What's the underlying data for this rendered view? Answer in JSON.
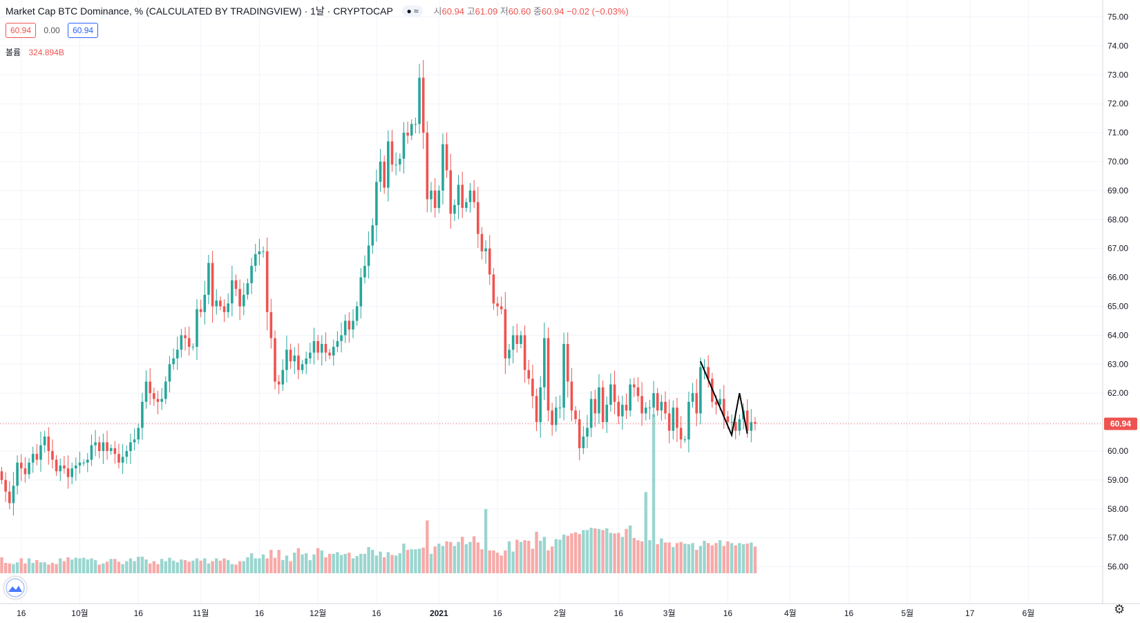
{
  "legend": {
    "symbol": "Market Cap BTC Dominance, % (CALCULATED BY TRADINGVIEW) · 1날 · CRYPTOCAP",
    "toggle": "● ≈",
    "o_label": "시",
    "o": "60.94",
    "h_label": "고",
    "h": "61.09",
    "l_label": "저",
    "l": "60.60",
    "c_label": "종",
    "c": "60.94",
    "change": "−0.02 (−0.03%)"
  },
  "value_chips": {
    "sell": "60.94",
    "spread": "0.00",
    "buy": "60.94"
  },
  "volume": {
    "label": "볼륨",
    "value": "324.894B"
  },
  "price_badge": "60.94",
  "colors": {
    "up": "#26a69a",
    "down": "#ef5350",
    "vol_up": "#9ad5cf",
    "vol_down": "#f7a9a8"
  },
  "icons": {
    "logo": "tradingview-logo-icon",
    "settings": "gear-icon"
  },
  "chart_data": {
    "type": "candlestick",
    "title": "Market Cap BTC Dominance, %",
    "ylim": [
      56.0,
      75.0
    ],
    "y_ticks": [
      "56.00",
      "57.00",
      "58.00",
      "59.00",
      "60.00",
      "61.00",
      "62.00",
      "63.00",
      "64.00",
      "65.00",
      "66.00",
      "67.00",
      "68.00",
      "69.00",
      "70.00",
      "71.00",
      "72.00",
      "73.00",
      "74.00",
      "75.00"
    ],
    "x_ticks": [
      {
        "label": "16",
        "i": 5
      },
      {
        "label": "10월",
        "i": 20
      },
      {
        "label": "16",
        "i": 35
      },
      {
        "label": "11월",
        "i": 51
      },
      {
        "label": "16",
        "i": 66
      },
      {
        "label": "12월",
        "i": 81
      },
      {
        "label": "16",
        "i": 96
      },
      {
        "label": "2021",
        "i": 112
      },
      {
        "label": "16",
        "i": 127
      },
      {
        "label": "2월",
        "i": 143
      },
      {
        "label": "16",
        "i": 158
      },
      {
        "label": "3월",
        "i": 171
      },
      {
        "label": "16",
        "i": 186
      },
      {
        "label": "4월",
        "i": 202
      },
      {
        "label": "16",
        "i": 217
      },
      {
        "label": "5월",
        "i": 232
      },
      {
        "label": "17",
        "i": 248
      },
      {
        "label": "6월",
        "i": 263
      }
    ],
    "last_price": 60.94,
    "drawn_line": [
      [
        179,
        63.1
      ],
      [
        187,
        60.55
      ],
      [
        189,
        62.0
      ],
      [
        191,
        60.6
      ]
    ],
    "closes": [
      59.0,
      58.6,
      58.2,
      58.8,
      59.6,
      59.4,
      59.2,
      59.6,
      59.9,
      59.7,
      60.2,
      60.5,
      60.0,
      59.7,
      59.3,
      59.5,
      59.4,
      59.1,
      59.4,
      59.5,
      59.6,
      59.6,
      59.7,
      60.2,
      60.3,
      60.0,
      60.3,
      60.0,
      60.1,
      59.9,
      59.6,
      59.8,
      60.0,
      60.3,
      60.4,
      60.8,
      61.7,
      62.4,
      62.0,
      61.8,
      61.7,
      61.8,
      62.4,
      63.0,
      63.2,
      63.5,
      64.0,
      63.9,
      63.6,
      63.6,
      64.9,
      64.8,
      65.4,
      66.5,
      65.0,
      65.2,
      65.0,
      64.8,
      65.1,
      65.9,
      65.6,
      65.0,
      65.4,
      65.8,
      66.4,
      66.8,
      66.9,
      66.9,
      64.8,
      63.9,
      62.4,
      62.3,
      62.8,
      63.5,
      63.1,
      63.3,
      62.8,
      63.0,
      63.2,
      63.4,
      63.8,
      63.4,
      63.7,
      63.4,
      63.3,
      63.6,
      63.8,
      64.0,
      64.5,
      64.2,
      64.5,
      65.0,
      66.0,
      66.4,
      67.1,
      67.8,
      69.3,
      70.0,
      69.1,
      70.7,
      69.9,
      69.9,
      70.1,
      71.0,
      70.9,
      71.3,
      71.3,
      72.9,
      71.0,
      68.7,
      69.0,
      68.4,
      69.0,
      70.6,
      69.7,
      68.2,
      68.5,
      69.2,
      68.4,
      68.6,
      69.0,
      68.6,
      67.5,
      66.9,
      67.0,
      66.1,
      65.1,
      65.0,
      64.9,
      63.2,
      63.5,
      64.0,
      63.7,
      64.0,
      62.8,
      62.5,
      61.9,
      61.0,
      62.2,
      63.9,
      61.4,
      60.9,
      61.5,
      61.5,
      63.7,
      62.4,
      61.4,
      61.1,
      60.1,
      60.5,
      60.8,
      61.8,
      61.3,
      62.2,
      61.0,
      61.6,
      62.3,
      61.7,
      61.2,
      61.6,
      61.4,
      62.3,
      62.2,
      61.9,
      61.3,
      61.5,
      61.5,
      62.0,
      61.4,
      61.7,
      61.3,
      60.7,
      61.5,
      60.8,
      60.4,
      60.4,
      61.7,
      62.0,
      61.3,
      62.9,
      62.9,
      62.5,
      61.7,
      61.6,
      61.8,
      61.2,
      61.0,
      61.0,
      60.7,
      61.1,
      61.4,
      60.7,
      61.0,
      60.94
    ],
    "volumes": [
      16.5,
      15.5,
      15.4,
      15.3,
      15.6,
      16.3,
      15.4,
      16.3,
      15.5,
      16.0,
      15.6,
      15.6,
      15.2,
      15.5,
      15.3,
      16.3,
      15.8,
      16.5,
      16.1,
      16.4,
      16.3,
      16.4,
      16.1,
      16.3,
      16.0,
      15.2,
      15.4,
      15.7,
      16.2,
      16.2,
      15.7,
      15.3,
      15.8,
      16.3,
      15.8,
      16.6,
      16.6,
      16.1,
      15.4,
      15.8,
      15.3,
      16.2,
      15.8,
      16.4,
      15.9,
      15.6,
      16.1,
      16.0,
      15.7,
      15.9,
      16.3,
      15.9,
      16.3,
      15.4,
      15.8,
      16.3,
      15.9,
      16.3,
      16.0,
      15.3,
      15.2,
      15.8,
      15.8,
      16.5,
      17.2,
      16.3,
      16.3,
      17.0,
      16.3,
      17.8,
      16.4,
      17.8,
      16.0,
      16.8,
      15.8,
      17.3,
      18.1,
      17.0,
      17.2,
      16.0,
      17.0,
      18.1,
      17.7,
      16.5,
      17.1,
      17.1,
      17.4,
      16.9,
      17.1,
      17.3,
      16.3,
      16.7,
      17.1,
      17.1,
      18.3,
      17.8,
      16.8,
      17.5,
      16.5,
      17.4,
      16.9,
      16.8,
      17.2,
      18.9,
      17.8,
      17.9,
      17.9,
      18.0,
      18.2,
      17.1,
      17.1,
      18.4,
      18.9,
      18.5,
      19.3,
      19.2,
      18.5,
      19.2,
      20.1,
      18.8,
      19.2,
      20.2,
      19.1,
      17.9,
      18.3,
      17.7,
      17.7,
      17.3,
      16.8,
      17.7,
      19.3,
      17.5,
      19.6,
      19.2,
      19.5,
      19.4,
      18.0,
      19.1,
      19.4,
      20.1,
      17.7,
      18.4,
      19.7,
      19.6,
      20.5,
      20.3,
      20.7,
      20.9,
      20.6,
      21.3,
      21.3,
      21.7,
      21.6,
      21.5,
      21.3,
      21.6,
      20.8,
      20.7,
      20.8,
      20.1,
      21.5,
      22.1,
      19.9,
      19.5,
      19.3,
      19.5,
      19.5,
      19.1,
      18.8,
      19.8,
      19.1,
      19.1,
      18.3,
      19.0,
      19.2,
      18.9,
      18.8,
      19.0,
      17.8,
      18.5,
      19.4,
      19.0,
      18.6,
      19.0,
      19.5,
      18.5,
      19.3,
      19.0,
      18.6,
      19.0,
      18.8,
      18.9,
      19.1,
      18.4,
      18.2,
      18.3,
      18.5,
      18.4,
      19.0,
      19.2,
      19.1,
      18.8,
      18.3
    ],
    "volume_spikes": {
      "109": 23.0,
      "124": 25.0,
      "137": 21.0,
      "165": 28.0,
      "167": 46.0
    }
  }
}
